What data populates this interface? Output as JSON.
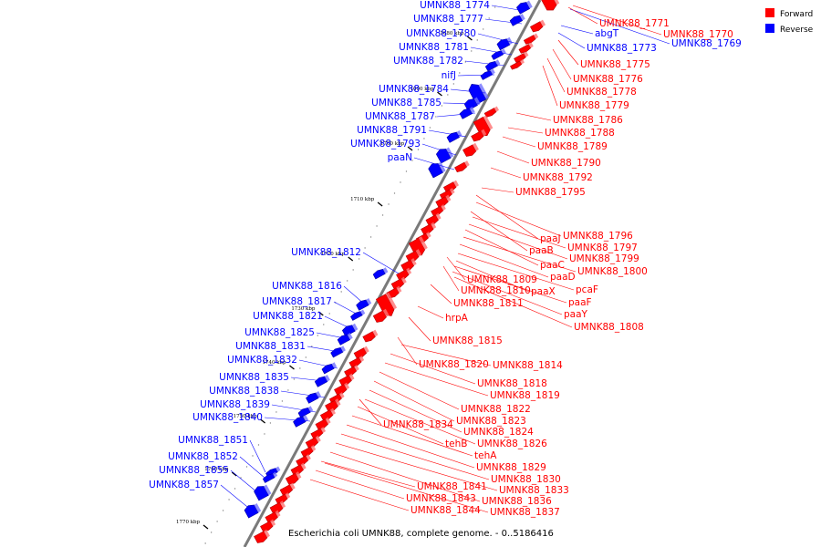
{
  "title": "Escherichia coli UMNK88, complete genome. - 0..5186416",
  "colors": {
    "forward": "#ff0000",
    "reverse": "#0000ff",
    "backbone": "#7a7a7a",
    "tick": "#000000"
  },
  "legend": [
    {
      "label": "Forward",
      "color": "#ff0000"
    },
    {
      "label": "Reverse",
      "color": "#0000ff"
    }
  ],
  "chart_data": {
    "type": "linear-genome-map",
    "title": "Escherichia coli UMNK88, complete genome. - 0..5186416",
    "window_kbp": [
      1665,
      1777
    ],
    "ticks": [
      "1680 kbp",
      "1690 kbp",
      "1700 kbp",
      "1710 kbp",
      "1720 kbp",
      "1730 kbp",
      "1740 kbp",
      "1750 kbp",
      "1760 kbp",
      "1770 kbp"
    ],
    "reverse_genes": [
      "UMNK88_1774",
      "UMNK88_1777",
      "UMNK88_1780",
      "UMNK88_1781",
      "UMNK88_1782",
      "nifJ",
      "UMNK88_1784",
      "UMNK88_1785",
      "UMNK88_1787",
      "UMNK88_1791",
      "UMNK88_1793",
      "paaN",
      "UMNK88_1812",
      "UMNK88_1816",
      "UMNK88_1817",
      "UMNK88_1821",
      "UMNK88_1825",
      "UMNK88_1831",
      "UMNK88_1832",
      "UMNK88_1835",
      "UMNK88_1838",
      "UMNK88_1839",
      "UMNK88_1840",
      "UMNK88_1851",
      "UMNK88_1852",
      "UMNK88_1855",
      "UMNK88_1857",
      "abgT",
      "UMNK88_1773",
      "UMNK88_1769"
    ],
    "forward_genes": [
      "UMNK88_1771",
      "UMNK88_1770",
      "UMNK88_1775",
      "UMNK88_1776",
      "UMNK88_1778",
      "UMNK88_1779",
      "UMNK88_1786",
      "UMNK88_1788",
      "UMNK88_1789",
      "UMNK88_1790",
      "UMNK88_1792",
      "UMNK88_1795",
      "paaJ",
      "UMNK88_1796",
      "paaB",
      "UMNK88_1797",
      "UMNK88_1799",
      "paaC",
      "UMNK88_1800",
      "paaD",
      "UMNK88_1809",
      "pcaF",
      "UMNK88_1810",
      "paaX",
      "paaF",
      "UMNK88_1811",
      "paaY",
      "UMNK88_1808",
      "hrpA",
      "UMNK88_1815",
      "UMNK88_1820",
      "UMNK88_1814",
      "UMNK88_1818",
      "UMNK88_1819",
      "UMNK88_1822",
      "UMNK88_1823",
      "UMNK88_1834",
      "UMNK88_1824",
      "UMNK88_1826",
      "tehB",
      "tehA",
      "UMNK88_1829",
      "UMNK88_1830",
      "UMNK88_1833",
      "UMNK88_1841",
      "UMNK88_1836",
      "UMNK88_1843",
      "UMNK88_1837",
      "UMNK88_1844"
    ]
  }
}
